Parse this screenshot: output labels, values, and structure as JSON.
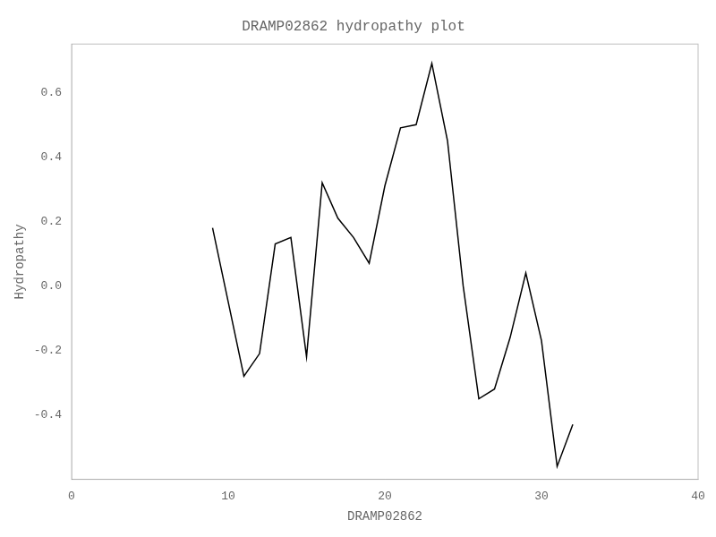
{
  "chart_data": {
    "type": "line",
    "title": "DRAMP02862 hydropathy plot",
    "xlabel": "DRAMP02862",
    "ylabel": "Hydropathy",
    "x": [
      9,
      10,
      11,
      12,
      13,
      14,
      15,
      16,
      17,
      18,
      19,
      20,
      21,
      22,
      23,
      24,
      25,
      26,
      27,
      28,
      29,
      30,
      31,
      32
    ],
    "values": [
      0.18,
      -0.05,
      -0.28,
      -0.21,
      0.13,
      0.15,
      -0.22,
      0.32,
      0.21,
      0.15,
      0.07,
      0.31,
      0.49,
      0.5,
      0.69,
      0.45,
      0.0,
      -0.35,
      -0.32,
      -0.16,
      0.04,
      -0.17,
      -0.56,
      -0.43
    ],
    "color": "#000000",
    "xlim": [
      0,
      40
    ],
    "ylim": [
      -0.6,
      0.75
    ],
    "xticks": [
      0,
      10,
      20,
      30,
      40
    ],
    "yticks": [
      -0.4,
      -0.2,
      {
        "value": 0.0,
        "label": "0.0"
      },
      0.2,
      0.4,
      0.6
    ],
    "grid": false
  }
}
